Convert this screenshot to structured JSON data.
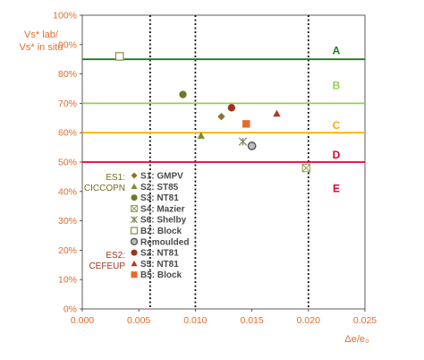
{
  "chart_data": {
    "type": "scatter",
    "title": "",
    "xlabel": "Δe/e₀",
    "ylabel_lines": [
      "Vs* lab/",
      "Vs* in situ"
    ],
    "xlim": [
      0,
      0.025
    ],
    "ylim": [
      0,
      100
    ],
    "x_ticks": [
      0,
      0.005,
      0.01,
      0.015,
      0.02,
      0.025
    ],
    "x_tick_labels": [
      "0.000",
      "0.005",
      "0.010",
      "0.015",
      "0.020",
      "0.025"
    ],
    "y_ticks": [
      0,
      10,
      20,
      30,
      40,
      50,
      60,
      70,
      80,
      90,
      100
    ],
    "y_tick_labels": [
      "0%",
      "10%",
      "20%",
      "30%",
      "40%",
      "50%",
      "60%",
      "70%",
      "80%",
      "90%",
      "100%"
    ],
    "grid": false,
    "vertical_dotted_lines_x": [
      0.006,
      0.01,
      0.02
    ],
    "horizontal_lines": [
      {
        "y": 85,
        "color": "#1e7a1e"
      },
      {
        "y": 70,
        "color": "#92d050"
      },
      {
        "y": 60,
        "color": "#ffb000"
      },
      {
        "y": 50,
        "color": "#e0002a"
      }
    ],
    "zones": [
      {
        "label": "A",
        "y": 88,
        "color": "#1e7a1e"
      },
      {
        "label": "B",
        "y": 76,
        "color": "#92d050"
      },
      {
        "label": "C",
        "y": 62.5,
        "color": "#ffb000"
      },
      {
        "label": "D",
        "y": 52.5,
        "color": "#e0002a"
      },
      {
        "label": "E",
        "y": 41,
        "color": "#e0002a"
      }
    ],
    "groups": [
      {
        "label_lines": [
          "ES1:",
          "CICCOPN"
        ],
        "color": "#7b6a1e"
      },
      {
        "label_lines": [
          "ES2:",
          "CEFEUP"
        ],
        "color": "#a0351e"
      }
    ],
    "series": [
      {
        "name": "S1: GMPV",
        "marker": "diamond",
        "color": "#8c7428",
        "points": [
          [
            0.0123,
            65.5
          ]
        ]
      },
      {
        "name": "S2: ST85",
        "marker": "triangle",
        "color": "#7b8c2a",
        "points": [
          [
            0.0105,
            59
          ]
        ]
      },
      {
        "name": "S3: NT81",
        "marker": "circle",
        "color": "#6b7a2a",
        "points": [
          [
            0.0089,
            73
          ]
        ]
      },
      {
        "name": "S4: Mazier",
        "marker": "square-x",
        "color": "#9aa060",
        "points": [
          [
            0.0198,
            48
          ]
        ]
      },
      {
        "name": "S6: Shelby",
        "marker": "star",
        "color": "#808a5a",
        "points": [
          [
            0.0142,
            57
          ]
        ]
      },
      {
        "name": "B2: Block",
        "marker": "square-open",
        "color": "#8a9a50",
        "points": [
          [
            0.0033,
            86
          ]
        ]
      },
      {
        "name": "Remoulded",
        "marker": "circle-gray",
        "color": "#8a8a8a",
        "points": [
          [
            0.015,
            55.5
          ]
        ]
      },
      {
        "name": "S2: NT81",
        "marker": "circle",
        "color": "#a03020",
        "points": [
          [
            0.0132,
            68.5
          ]
        ]
      },
      {
        "name": "S5: NT81",
        "marker": "triangle",
        "color": "#b03a2a",
        "points": [
          [
            0.0172,
            66.5
          ]
        ]
      },
      {
        "name": "B5: Block",
        "marker": "square",
        "color": "#e86a2a",
        "points": [
          [
            0.0145,
            63
          ]
        ]
      }
    ],
    "legend": {
      "position": "inside-left",
      "group_breaks": {
        "ES1": [
          0,
          6
        ],
        "ES2": [
          7,
          9
        ]
      }
    }
  }
}
